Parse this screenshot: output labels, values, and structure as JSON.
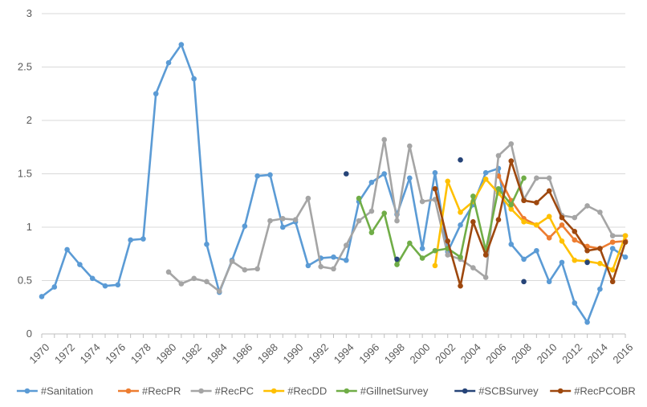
{
  "chart_data": {
    "type": "line",
    "title": "",
    "xlabel": "",
    "ylabel": "",
    "ylim": [
      0,
      3
    ],
    "yticks": [
      0,
      0.5,
      1,
      1.5,
      2,
      2.5,
      3
    ],
    "ytick_labels": [
      "0",
      "0.5",
      "1",
      "1.5",
      "2",
      "2.5",
      "3"
    ],
    "xlim": [
      1970,
      2016
    ],
    "xticks": [
      1970,
      1972,
      1974,
      1976,
      1978,
      1980,
      1982,
      1984,
      1986,
      1988,
      1990,
      1992,
      1994,
      1996,
      1998,
      2000,
      2002,
      2004,
      2006,
      2008,
      2010,
      2012,
      2014,
      2016
    ],
    "xtick_labels": [
      "1970",
      "1972",
      "1974",
      "1976",
      "1978",
      "1980",
      "1982",
      "1984",
      "1986",
      "1988",
      "1990",
      "1992",
      "1994",
      "1996",
      "1998",
      "2000",
      "2002",
      "2004",
      "2006",
      "2008",
      "2010",
      "2012",
      "2014",
      "2016"
    ],
    "grid": "horizontal",
    "legend_position": "bottom",
    "series": [
      {
        "name": "#Sanitation",
        "color": "#5B9BD5",
        "x": [
          1970,
          1971,
          1972,
          1973,
          1974,
          1975,
          1976,
          1977,
          1978,
          1979,
          1980,
          1981,
          1982,
          1983,
          1984,
          1985,
          1986,
          1987,
          1988,
          1989,
          1990,
          1991,
          1992,
          1993,
          1994,
          1995,
          1996,
          1997,
          1998,
          1999,
          2000,
          2001,
          2002,
          2003,
          2004,
          2005,
          2006,
          2007,
          2008,
          2009,
          2010,
          2011,
          2012,
          2013,
          2014,
          2015,
          2016
        ],
        "y": [
          0.35,
          0.44,
          0.79,
          0.65,
          0.52,
          0.45,
          0.46,
          0.88,
          0.89,
          2.25,
          2.54,
          2.71,
          2.39,
          0.84,
          0.39,
          0.69,
          1.01,
          1.48,
          1.49,
          1.0,
          1.05,
          0.64,
          0.71,
          0.72,
          0.69,
          1.24,
          1.42,
          1.5,
          1.12,
          1.46,
          0.8,
          1.51,
          0.77,
          1.02,
          1.21,
          1.51,
          1.55,
          0.84,
          0.7,
          0.78,
          0.49,
          0.67,
          0.29,
          0.11,
          0.42,
          0.8,
          0.72
        ]
      },
      {
        "name": "#RecPR",
        "color": "#ED7D31",
        "x": [
          2006,
          2007,
          2008,
          2009,
          2010,
          2011,
          2012,
          2013,
          2014,
          2015,
          2016
        ],
        "y": [
          1.48,
          1.25,
          1.08,
          1.02,
          0.9,
          1.02,
          0.88,
          0.82,
          0.8,
          0.86,
          0.87
        ]
      },
      {
        "name": "#RecPC",
        "color": "#A5A5A5",
        "x": [
          1980,
          1981,
          1982,
          1983,
          1984,
          1985,
          1986,
          1987,
          1988,
          1989,
          1990,
          1991,
          1992,
          1993,
          1994,
          1995,
          1996,
          1997,
          1998,
          1999,
          2000,
          2001,
          2002,
          2003,
          2004,
          2005,
          2006,
          2007,
          2008,
          2009,
          2010,
          2011,
          2012,
          2013,
          2014,
          2015,
          2016
        ],
        "y": [
          0.58,
          0.47,
          0.52,
          0.49,
          0.4,
          0.68,
          0.6,
          0.61,
          1.06,
          1.08,
          1.07,
          1.27,
          0.63,
          0.61,
          0.83,
          1.06,
          1.15,
          1.82,
          1.06,
          1.76,
          1.24,
          1.26,
          0.74,
          0.7,
          0.62,
          0.53,
          1.67,
          1.78,
          1.26,
          1.46,
          1.46,
          1.11,
          1.09,
          1.2,
          1.14,
          0.92,
          0.92
        ]
      },
      {
        "name": "#RecDD",
        "color": "#FFC000",
        "x": [
          2001,
          2002,
          2003,
          2004,
          2005,
          2006,
          2007,
          2008,
          2009,
          2010,
          2011,
          2012,
          2013,
          2014,
          2015,
          2016
        ],
        "y": [
          0.64,
          1.43,
          1.14,
          1.24,
          1.45,
          1.32,
          1.17,
          1.05,
          1.02,
          1.1,
          0.87,
          0.69,
          0.68,
          0.66,
          0.6,
          0.92
        ]
      },
      {
        "name": "#GillnetSurvey",
        "color": "#70AD47",
        "x": [
          1995,
          1996,
          1997,
          1998,
          1999,
          2000,
          2001,
          2002,
          2003,
          2004,
          2005,
          2006,
          2007,
          2008
        ],
        "y": [
          1.27,
          0.95,
          1.13,
          0.65,
          0.85,
          0.71,
          0.78,
          0.8,
          0.72,
          1.29,
          0.78,
          1.36,
          1.21,
          1.46
        ]
      },
      {
        "name": "#SCBSurvey",
        "color": "#264478",
        "line": false,
        "x": [
          1994,
          1998,
          2003,
          2008,
          2013
        ],
        "y": [
          1.5,
          0.7,
          1.63,
          0.49,
          0.67
        ]
      },
      {
        "name": "#RecPCOBR",
        "color": "#9E480E",
        "x": [
          2001,
          2002,
          2003,
          2004,
          2005,
          2006,
          2007,
          2008,
          2009,
          2010,
          2011,
          2012,
          2013,
          2014,
          2015,
          2016
        ],
        "y": [
          1.36,
          0.87,
          0.45,
          1.05,
          0.74,
          1.07,
          1.62,
          1.25,
          1.23,
          1.34,
          1.09,
          0.96,
          0.78,
          0.8,
          0.49,
          0.86
        ]
      }
    ]
  }
}
